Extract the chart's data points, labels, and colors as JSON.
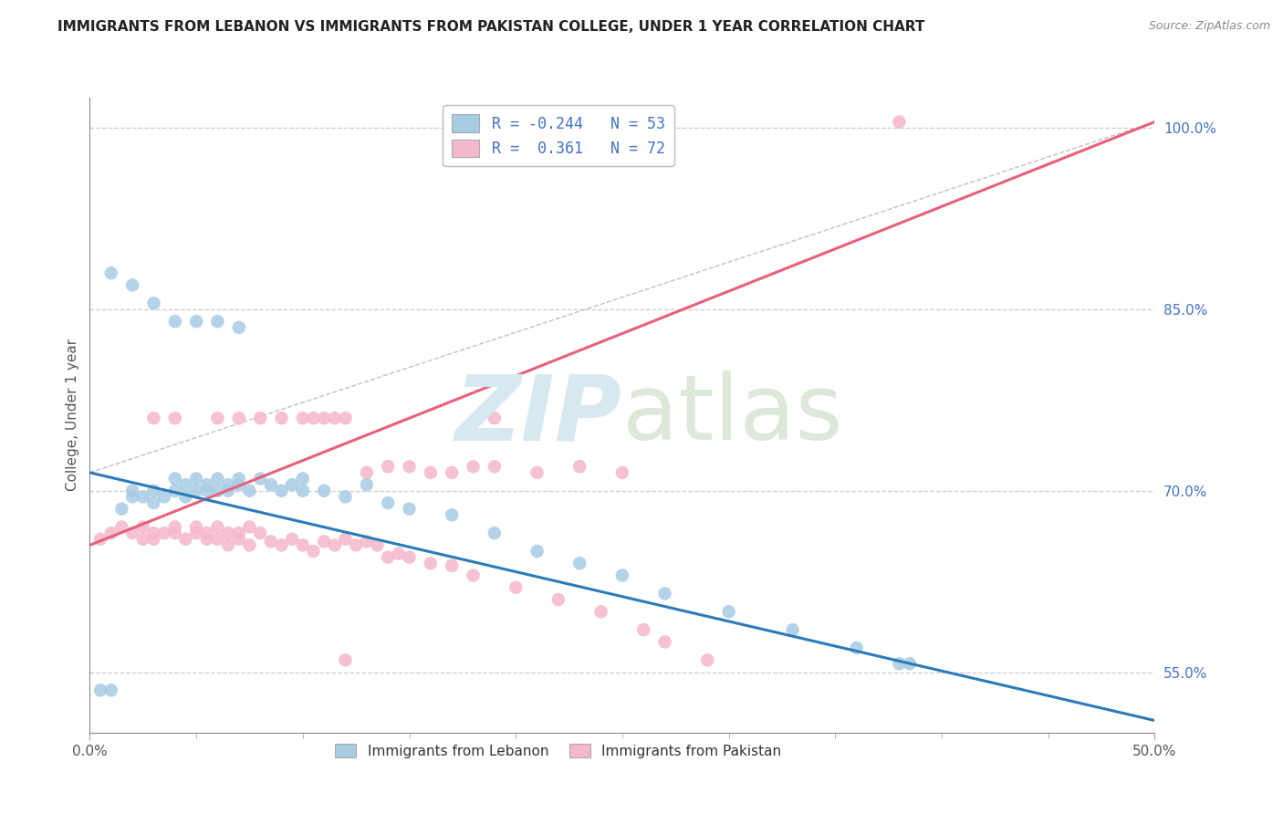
{
  "title": "IMMIGRANTS FROM LEBANON VS IMMIGRANTS FROM PAKISTAN COLLEGE, UNDER 1 YEAR CORRELATION CHART",
  "source": "Source: ZipAtlas.com",
  "ylabel": "College, Under 1 year",
  "xlim": [
    0.0,
    0.5
  ],
  "ylim": [
    0.5,
    1.02
  ],
  "blue_color": "#a8cce4",
  "pink_color": "#f5b8ca",
  "blue_line_color": "#2b7bba",
  "pink_line_color": "#e8607a",
  "grey_line_color": "#c0c0c0",
  "background_color": "#ffffff",
  "watermark_zip": "ZIP",
  "watermark_atlas": "atlas",
  "ytick_positions": [
    0.55,
    0.7,
    0.85,
    1.0
  ],
  "ytick_labels": [
    "55.0%",
    "70.0%",
    "85.0%",
    "100.0%"
  ],
  "xtick_minor": [
    0.05,
    0.1,
    0.15,
    0.2,
    0.25,
    0.3,
    0.35,
    0.4,
    0.45
  ],
  "blue_trend": [
    0.0,
    0.5,
    0.715,
    0.51
  ],
  "pink_trend": [
    0.0,
    0.5,
    0.655,
    1.005
  ],
  "grey_trend": [
    0.0,
    0.5,
    0.715,
    1.005
  ],
  "blue_x": [
    0.005,
    0.01,
    0.015,
    0.02,
    0.02,
    0.025,
    0.03,
    0.03,
    0.035,
    0.04,
    0.04,
    0.045,
    0.045,
    0.05,
    0.05,
    0.055,
    0.055,
    0.06,
    0.06,
    0.065,
    0.065,
    0.07,
    0.07,
    0.075,
    0.08,
    0.085,
    0.09,
    0.095,
    0.1,
    0.1,
    0.11,
    0.12,
    0.13,
    0.14,
    0.15,
    0.17,
    0.19,
    0.21,
    0.23,
    0.25,
    0.27,
    0.3,
    0.33,
    0.36,
    0.385,
    0.01,
    0.02,
    0.03,
    0.04,
    0.05,
    0.06,
    0.07,
    0.38
  ],
  "blue_y": [
    0.535,
    0.535,
    0.685,
    0.695,
    0.7,
    0.695,
    0.69,
    0.7,
    0.695,
    0.7,
    0.71,
    0.705,
    0.695,
    0.7,
    0.71,
    0.7,
    0.705,
    0.7,
    0.71,
    0.705,
    0.7,
    0.705,
    0.71,
    0.7,
    0.71,
    0.705,
    0.7,
    0.705,
    0.7,
    0.71,
    0.7,
    0.695,
    0.705,
    0.69,
    0.685,
    0.68,
    0.665,
    0.65,
    0.64,
    0.63,
    0.615,
    0.6,
    0.585,
    0.57,
    0.557,
    0.88,
    0.87,
    0.855,
    0.84,
    0.84,
    0.84,
    0.835,
    0.557
  ],
  "pink_x": [
    0.005,
    0.01,
    0.015,
    0.02,
    0.025,
    0.025,
    0.03,
    0.03,
    0.035,
    0.04,
    0.04,
    0.045,
    0.05,
    0.05,
    0.055,
    0.055,
    0.06,
    0.06,
    0.065,
    0.065,
    0.07,
    0.07,
    0.075,
    0.075,
    0.08,
    0.085,
    0.09,
    0.095,
    0.1,
    0.105,
    0.11,
    0.115,
    0.12,
    0.125,
    0.13,
    0.135,
    0.14,
    0.145,
    0.15,
    0.16,
    0.17,
    0.18,
    0.2,
    0.22,
    0.24,
    0.26,
    0.27,
    0.29,
    0.13,
    0.15,
    0.17,
    0.19,
    0.14,
    0.16,
    0.18,
    0.21,
    0.23,
    0.25,
    0.09,
    0.11,
    0.19,
    0.38,
    0.12,
    0.03,
    0.04,
    0.06,
    0.07,
    0.08,
    0.1,
    0.105,
    0.115,
    0.12
  ],
  "pink_y": [
    0.66,
    0.665,
    0.67,
    0.665,
    0.66,
    0.67,
    0.665,
    0.66,
    0.665,
    0.67,
    0.665,
    0.66,
    0.67,
    0.665,
    0.66,
    0.665,
    0.66,
    0.67,
    0.665,
    0.655,
    0.665,
    0.66,
    0.67,
    0.655,
    0.665,
    0.658,
    0.655,
    0.66,
    0.655,
    0.65,
    0.658,
    0.655,
    0.66,
    0.655,
    0.658,
    0.655,
    0.645,
    0.648,
    0.645,
    0.64,
    0.638,
    0.63,
    0.62,
    0.61,
    0.6,
    0.585,
    0.575,
    0.56,
    0.715,
    0.72,
    0.715,
    0.72,
    0.72,
    0.715,
    0.72,
    0.715,
    0.72,
    0.715,
    0.76,
    0.76,
    0.76,
    1.005,
    0.56,
    0.76,
    0.76,
    0.76,
    0.76,
    0.76,
    0.76,
    0.76,
    0.76,
    0.76
  ]
}
